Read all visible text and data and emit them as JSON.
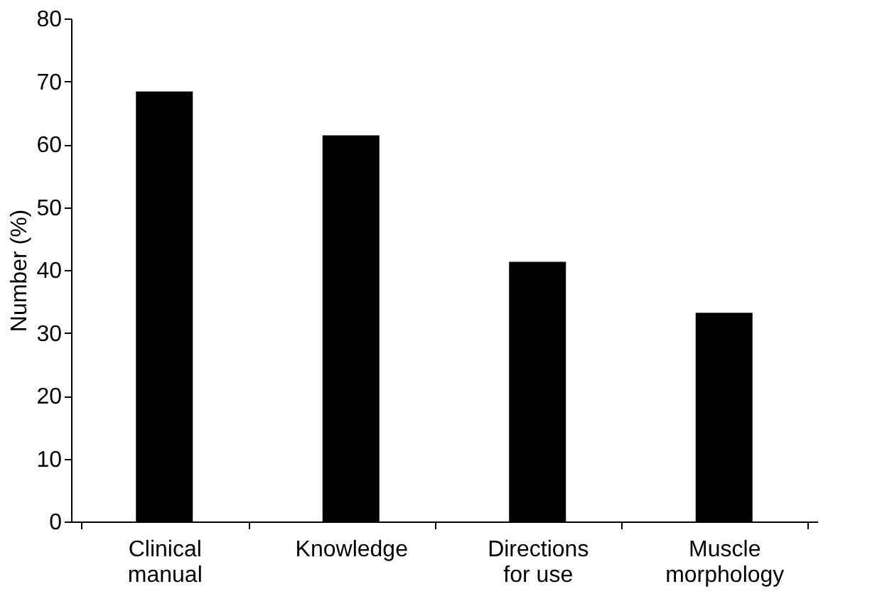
{
  "chart_data": {
    "type": "bar",
    "ylabel": "Number (%)",
    "categories": [
      "Clinical\nmanual",
      "Knowledge",
      "Directions\nfor use",
      "Muscle\nmorphology"
    ],
    "values": [
      68.4,
      61.4,
      41.3,
      33.2
    ],
    "color": "#000000",
    "ylim": [
      0,
      80
    ],
    "yticks": [
      0,
      10,
      20,
      30,
      40,
      50,
      60,
      70,
      80
    ],
    "grid": false
  }
}
